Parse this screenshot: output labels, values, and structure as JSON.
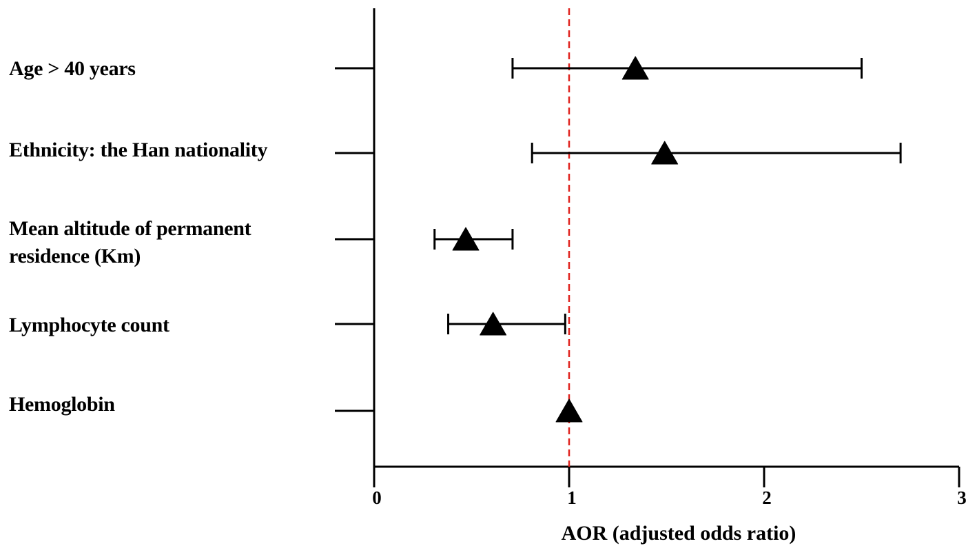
{
  "chart_data": {
    "type": "forest",
    "title": "",
    "xlabel": "AOR (adjusted odds ratio)",
    "ylabel": "",
    "xlim": [
      0,
      3
    ],
    "xticks": [
      "0",
      "1",
      "2",
      "3"
    ],
    "reference_line": {
      "x": 1,
      "style": "dashed",
      "color": "#e0221e"
    },
    "marker": "triangle",
    "grid": false,
    "series": [
      {
        "label": "Age > 40 years",
        "estimate": 1.34,
        "lower": 0.71,
        "upper": 2.5
      },
      {
        "label": "Ethnicity: the Han nationality",
        "estimate": 1.49,
        "lower": 0.81,
        "upper": 2.7
      },
      {
        "label": "Mean altitude of permanent\nresidence (Km)",
        "estimate": 0.47,
        "lower": 0.31,
        "upper": 0.71
      },
      {
        "label": "Lymphocyte count",
        "estimate": 0.61,
        "lower": 0.38,
        "upper": 0.98
      },
      {
        "label": "Hemoglobin",
        "estimate": 1.0,
        "lower": 1.0,
        "upper": 1.0
      }
    ]
  }
}
